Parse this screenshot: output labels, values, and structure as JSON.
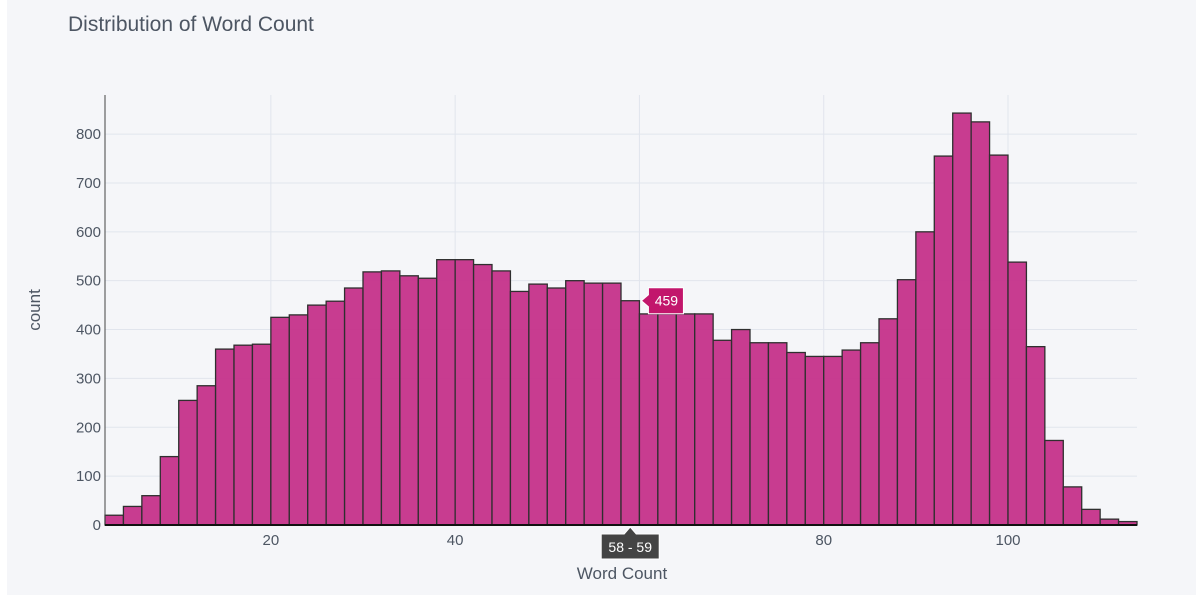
{
  "chart_data": {
    "type": "bar",
    "title": "Distribution of Word Count",
    "xlabel": "Word Count",
    "ylabel": "count",
    "xlim": [
      2,
      114
    ],
    "ylim": [
      0,
      880
    ],
    "bin_width": 2,
    "bins_start": [
      2,
      4,
      6,
      8,
      10,
      12,
      14,
      16,
      18,
      20,
      22,
      24,
      26,
      28,
      30,
      32,
      34,
      36,
      38,
      40,
      42,
      44,
      46,
      48,
      50,
      52,
      54,
      56,
      58,
      60,
      62,
      64,
      66,
      68,
      70,
      72,
      74,
      76,
      78,
      80,
      82,
      84,
      86,
      88,
      90,
      92,
      94,
      96,
      98,
      100,
      102,
      104,
      106,
      108,
      110,
      112
    ],
    "values": [
      20,
      38,
      60,
      140,
      255,
      285,
      360,
      368,
      370,
      425,
      430,
      450,
      458,
      485,
      518,
      520,
      510,
      505,
      543,
      543,
      533,
      520,
      478,
      493,
      485,
      500,
      495,
      495,
      459,
      432,
      432,
      432,
      432,
      378,
      400,
      373,
      373,
      353,
      345,
      345,
      358,
      373,
      422,
      502,
      600,
      755,
      843,
      825,
      757,
      538,
      365,
      173,
      78,
      32,
      12,
      7
    ],
    "x_ticks": [
      "20",
      "40",
      "60",
      "80",
      "100"
    ],
    "y_ticks": [
      "0",
      "100",
      "200",
      "300",
      "400",
      "500",
      "600",
      "700",
      "800"
    ],
    "bar_color": "#c5318a",
    "bar_edge_color": "#2f2f2f",
    "background": "#f5f6f9",
    "hover": {
      "bin_index": 28,
      "value_label": "459",
      "x_label": "58 - 59",
      "color": "#c2166c"
    }
  }
}
